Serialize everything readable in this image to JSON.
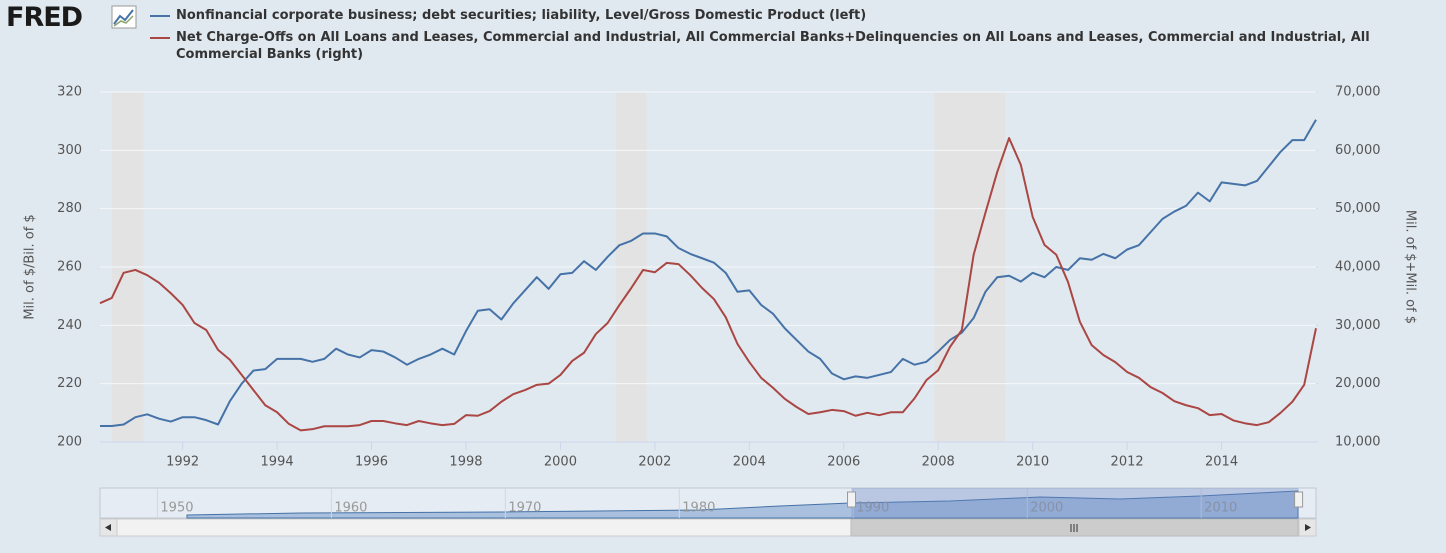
{
  "chart_data": {
    "type": "line",
    "logo": "FRED",
    "x": [
      1990.25,
      1990.5,
      1990.75,
      1991,
      1991.25,
      1991.5,
      1991.75,
      1992,
      1992.25,
      1992.5,
      1992.75,
      1993,
      1993.25,
      1993.5,
      1993.75,
      1994,
      1994.25,
      1994.5,
      1994.75,
      1995,
      1995.25,
      1995.5,
      1995.75,
      1996,
      1996.25,
      1996.5,
      1996.75,
      1997,
      1997.25,
      1997.5,
      1997.75,
      1998,
      1998.25,
      1998.5,
      1998.75,
      1999,
      1999.25,
      1999.5,
      1999.75,
      2000,
      2000.25,
      2000.5,
      2000.75,
      2001,
      2001.25,
      2001.5,
      2001.75,
      2002,
      2002.25,
      2002.5,
      2002.75,
      2003,
      2003.25,
      2003.5,
      2003.75,
      2004,
      2004.25,
      2004.5,
      2004.75,
      2005,
      2005.25,
      2005.5,
      2005.75,
      2006,
      2006.25,
      2006.5,
      2006.75,
      2007,
      2007.25,
      2007.5,
      2007.75,
      2008,
      2008.25,
      2008.5,
      2008.75,
      2009,
      2009.25,
      2009.5,
      2009.75,
      2010,
      2010.25,
      2010.5,
      2010.75,
      2011,
      2011.25,
      2011.5,
      2011.75,
      2012,
      2012.25,
      2012.5,
      2012.75,
      2013,
      2013.25,
      2013.5,
      2013.75,
      2014,
      2014.25,
      2014.5,
      2014.75,
      2015,
      2015.25,
      2015.5,
      2015.75,
      2016
    ],
    "xlim": [
      1990.25,
      2016
    ],
    "xticks": [
      1992,
      1994,
      1996,
      1998,
      2000,
      2002,
      2004,
      2006,
      2008,
      2010,
      2012,
      2014
    ],
    "ylim": [
      200,
      320
    ],
    "yticks": [
      200,
      220,
      240,
      260,
      280,
      300,
      320
    ],
    "y2lim": [
      10000,
      70000
    ],
    "y2ticks": [
      {
        "value": 10000,
        "label": "10,000"
      },
      {
        "value": 20000,
        "label": "20,000"
      },
      {
        "value": 30000,
        "label": "30,000"
      },
      {
        "value": 40000,
        "label": "40,000"
      },
      {
        "value": 50000,
        "label": "50,000"
      },
      {
        "value": 60000,
        "label": "60,000"
      },
      {
        "value": 70000,
        "label": "70,000"
      }
    ],
    "ylabel": "Mil. of $/Bil. of $",
    "y2label": "Mil. of $+Mil. of $",
    "grid": true,
    "recessions": [
      [
        1990.5,
        1991.17
      ],
      [
        2001.17,
        2001.83
      ],
      [
        2007.92,
        2009.42
      ]
    ],
    "recession_color": "#e3e3e3",
    "series": [
      {
        "name": "Nonfinancial corporate business; debt securities; liability, Level/Gross Domestic Product (left)",
        "color": "#4572a7",
        "values": [
          205.5,
          205.5,
          206,
          208.5,
          209.5,
          208,
          207,
          208.5,
          208.5,
          207.5,
          206,
          214,
          220,
          224.5,
          225,
          228.5,
          228.5,
          228.5,
          227.5,
          228.5,
          232,
          230,
          229,
          231.5,
          231,
          229,
          226.5,
          228.5,
          230,
          232,
          230,
          238,
          245,
          245.5,
          242,
          247.5,
          252,
          256.5,
          252.5,
          257.5,
          258,
          262,
          259,
          263.5,
          267.5,
          269,
          271.5,
          271.5,
          270.5,
          266.5,
          264.5,
          263,
          261.5,
          258,
          251.5,
          252,
          247,
          244,
          239,
          235,
          231,
          228.5,
          223.5,
          221.5,
          222.5,
          222,
          223,
          224,
          228.5,
          226.5,
          227.5,
          231,
          235,
          237.5,
          242.5,
          251.5,
          256.5,
          257,
          255,
          258,
          256.5,
          260,
          259,
          263,
          262.5,
          264.5,
          263,
          266,
          267.5,
          272,
          276.5,
          279,
          281,
          285.5,
          282.5,
          289,
          288.5,
          288,
          289.5,
          294.5,
          299.5,
          303.5,
          303.5,
          310.5
        ]
      },
      {
        "name": "Net Charge-Offs on All Loans and Leases, Commercial and Industrial, All Commercial Banks+Delinquencies on All Loans and Leases, Commercial and Industrial, All Commercial Banks (right)",
        "color": "#aa4643",
        "axis": "y2",
        "values": [
          33800,
          34700,
          39000,
          39500,
          38600,
          37300,
          35500,
          33500,
          30400,
          29200,
          25800,
          24100,
          21500,
          18900,
          16300,
          15100,
          13100,
          12000,
          12200,
          12700,
          12700,
          12700,
          12900,
          13600,
          13600,
          13200,
          12900,
          13600,
          13200,
          12900,
          13100,
          14600,
          14500,
          15300,
          16900,
          18200,
          18900,
          19800,
          20000,
          21500,
          23900,
          25300,
          28500,
          30400,
          33500,
          36400,
          39500,
          39100,
          40700,
          40500,
          38600,
          36400,
          34500,
          31400,
          26800,
          23700,
          21000,
          19300,
          17400,
          16000,
          14800,
          15100,
          15500,
          15300,
          14500,
          15000,
          14600,
          15100,
          15100,
          17500,
          20600,
          22300,
          26300,
          29200,
          42100,
          49300,
          56300,
          62100,
          57500,
          48600,
          43800,
          42100,
          37400,
          30600,
          26600,
          24900,
          23700,
          22000,
          21000,
          19400,
          18400,
          17000,
          16300,
          15800,
          14600,
          14800,
          13700,
          13200,
          12900,
          13400,
          15000,
          16900,
          19800,
          29500
        ]
      }
    ],
    "navigator": {
      "xlim": [
        1946.7,
        2016.6
      ],
      "xticks": [
        1950,
        1960,
        1970,
        1980,
        1990,
        2000,
        2010
      ],
      "selection": [
        1989.9,
        2015.6
      ]
    }
  }
}
